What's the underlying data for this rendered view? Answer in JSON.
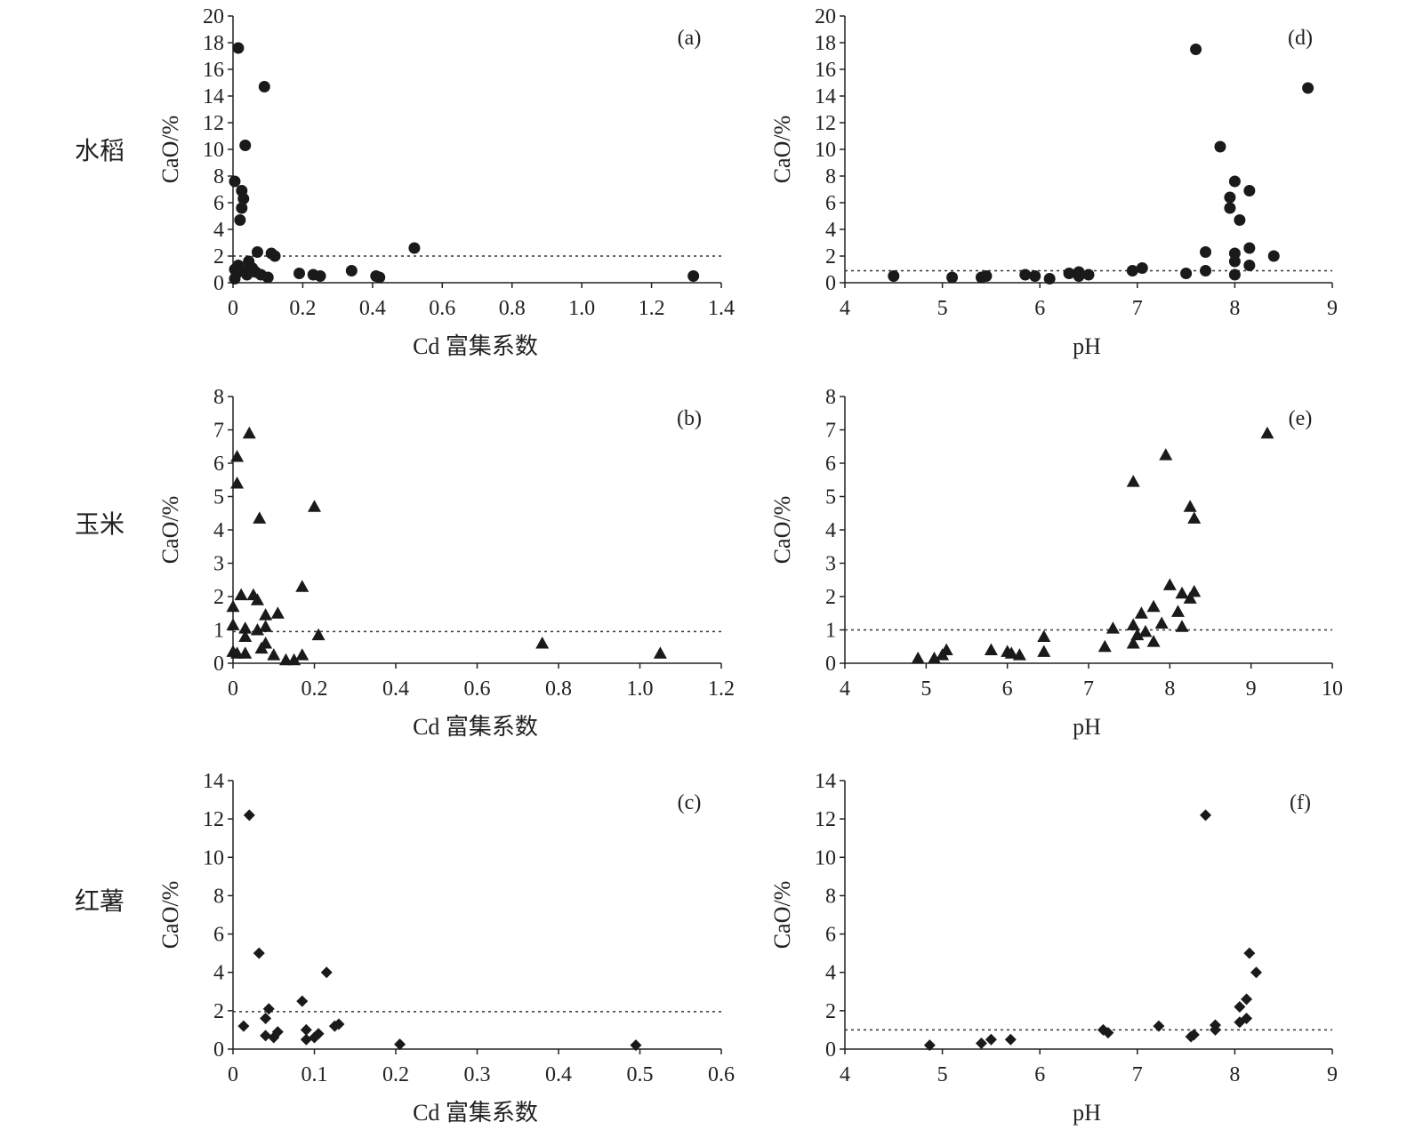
{
  "row_labels": [
    "水稻",
    "玉米",
    "红薯"
  ],
  "chart_data": [
    {
      "type": "scatter",
      "panel": "(a)",
      "marker": "circle",
      "xlabel": "Cd 富集系数",
      "ylabel": "CaO/%",
      "xlim": [
        0,
        1.4
      ],
      "ylim": [
        0,
        20
      ],
      "xticks": [
        "0",
        "0.2",
        "0.4",
        "0.6",
        "0.8",
        "1.0",
        "1.2",
        "1.4"
      ],
      "yticks": [
        "0",
        "2",
        "4",
        "6",
        "8",
        "10",
        "12",
        "14",
        "16",
        "18",
        "20"
      ],
      "threshold": 2,
      "points": [
        [
          0.015,
          17.6
        ],
        [
          0.09,
          14.7
        ],
        [
          0.035,
          10.3
        ],
        [
          0.005,
          7.6
        ],
        [
          0.025,
          6.9
        ],
        [
          0.03,
          6.3
        ],
        [
          0.025,
          5.6
        ],
        [
          0.02,
          4.7
        ],
        [
          0.52,
          2.6
        ],
        [
          0.07,
          2.3
        ],
        [
          0.11,
          2.2
        ],
        [
          0.12,
          2.0
        ],
        [
          0.045,
          1.6
        ],
        [
          0.015,
          1.3
        ],
        [
          0.055,
          1.1
        ],
        [
          0.005,
          1.0
        ],
        [
          0.03,
          0.9
        ],
        [
          0.065,
          0.8
        ],
        [
          0.34,
          0.9
        ],
        [
          0.01,
          0.7
        ],
        [
          0.04,
          0.6
        ],
        [
          0.08,
          0.6
        ],
        [
          0.19,
          0.7
        ],
        [
          0.23,
          0.6
        ],
        [
          0.25,
          0.5
        ],
        [
          0.1,
          0.4
        ],
        [
          0.41,
          0.5
        ],
        [
          0.42,
          0.4
        ],
        [
          0.005,
          0.3
        ],
        [
          1.32,
          0.5
        ]
      ]
    },
    {
      "type": "scatter",
      "panel": "(b)",
      "marker": "triangle",
      "xlabel": "Cd 富集系数",
      "ylabel": "CaO/%",
      "xlim": [
        0,
        1.2
      ],
      "ylim": [
        0,
        8
      ],
      "xticks": [
        "0",
        "0.2",
        "0.4",
        "0.6",
        "0.8",
        "1.0",
        "1.2"
      ],
      "yticks": [
        "0",
        "1",
        "2",
        "3",
        "4",
        "5",
        "6",
        "7",
        "8"
      ],
      "threshold": 0.95,
      "points": [
        [
          0.04,
          6.9
        ],
        [
          0.01,
          6.2
        ],
        [
          0.01,
          5.4
        ],
        [
          0.2,
          4.7
        ],
        [
          0.065,
          4.35
        ],
        [
          0.17,
          2.3
        ],
        [
          0.02,
          2.05
        ],
        [
          0.05,
          2.05
        ],
        [
          0.06,
          1.9
        ],
        [
          0.11,
          1.5
        ],
        [
          0.08,
          1.45
        ],
        [
          0.0,
          1.7
        ],
        [
          0.0,
          1.15
        ],
        [
          0.08,
          1.1
        ],
        [
          0.03,
          1.05
        ],
        [
          0.06,
          1.0
        ],
        [
          0.21,
          0.85
        ],
        [
          0.03,
          0.8
        ],
        [
          0.08,
          0.6
        ],
        [
          0.07,
          0.45
        ],
        [
          0.01,
          0.3
        ],
        [
          0.03,
          0.3
        ],
        [
          0.1,
          0.25
        ],
        [
          0.13,
          0.1
        ],
        [
          0.15,
          0.1
        ],
        [
          0.17,
          0.25
        ],
        [
          0.0,
          0.35
        ],
        [
          0.76,
          0.6
        ],
        [
          1.05,
          0.3
        ]
      ]
    },
    {
      "type": "scatter",
      "panel": "(c)",
      "marker": "diamond",
      "xlabel": "Cd 富集系数",
      "ylabel": "CaO/%",
      "xlim": [
        0,
        0.6
      ],
      "ylim": [
        0,
        14
      ],
      "xticks": [
        "0",
        "0.1",
        "0.2",
        "0.3",
        "0.4",
        "0.5",
        "0.6"
      ],
      "yticks": [
        "0",
        "2",
        "4",
        "6",
        "8",
        "10",
        "12",
        "14"
      ],
      "threshold": 1.95,
      "points": [
        [
          0.02,
          12.2
        ],
        [
          0.032,
          5.0
        ],
        [
          0.115,
          4.0
        ],
        [
          0.085,
          2.5
        ],
        [
          0.044,
          2.1
        ],
        [
          0.04,
          1.6
        ],
        [
          0.013,
          1.2
        ],
        [
          0.13,
          1.3
        ],
        [
          0.125,
          1.2
        ],
        [
          0.09,
          1.0
        ],
        [
          0.055,
          0.9
        ],
        [
          0.04,
          0.7
        ],
        [
          0.05,
          0.6
        ],
        [
          0.105,
          0.8
        ],
        [
          0.1,
          0.6
        ],
        [
          0.09,
          0.5
        ],
        [
          0.205,
          0.25
        ],
        [
          0.495,
          0.2
        ]
      ]
    },
    {
      "type": "scatter",
      "panel": "(d)",
      "marker": "circle",
      "xlabel": "pH",
      "ylabel": "CaO/%",
      "xlim": [
        4,
        9
      ],
      "ylim": [
        0,
        20
      ],
      "xticks": [
        "4",
        "5",
        "6",
        "7",
        "8",
        "9"
      ],
      "yticks": [
        "0",
        "2",
        "4",
        "6",
        "8",
        "10",
        "12",
        "14",
        "16",
        "18",
        "20"
      ],
      "threshold": 0.9,
      "points": [
        [
          7.6,
          17.5
        ],
        [
          8.75,
          14.6
        ],
        [
          7.85,
          10.2
        ],
        [
          8.0,
          7.6
        ],
        [
          8.15,
          6.9
        ],
        [
          7.95,
          6.4
        ],
        [
          7.95,
          5.6
        ],
        [
          8.05,
          4.7
        ],
        [
          8.15,
          2.6
        ],
        [
          7.7,
          2.3
        ],
        [
          8.0,
          2.2
        ],
        [
          8.4,
          2.0
        ],
        [
          8.0,
          1.6
        ],
        [
          8.15,
          1.3
        ],
        [
          7.05,
          1.1
        ],
        [
          6.95,
          0.9
        ],
        [
          7.7,
          0.9
        ],
        [
          8.0,
          0.6
        ],
        [
          7.5,
          0.7
        ],
        [
          6.4,
          0.8
        ],
        [
          6.3,
          0.7
        ],
        [
          6.5,
          0.6
        ],
        [
          6.4,
          0.5
        ],
        [
          5.85,
          0.6
        ],
        [
          5.95,
          0.5
        ],
        [
          5.45,
          0.5
        ],
        [
          5.4,
          0.4
        ],
        [
          4.5,
          0.5
        ],
        [
          5.1,
          0.4
        ],
        [
          6.1,
          0.3
        ]
      ]
    },
    {
      "type": "scatter",
      "panel": "(e)",
      "marker": "triangle",
      "xlabel": "pH",
      "ylabel": "CaO/%",
      "xlim": [
        4,
        10
      ],
      "ylim": [
        0,
        8
      ],
      "xticks": [
        "4",
        "5",
        "6",
        "7",
        "8",
        "9",
        "10"
      ],
      "yticks": [
        "0",
        "1",
        "2",
        "3",
        "4",
        "5",
        "6",
        "7",
        "8"
      ],
      "threshold": 1.0,
      "points": [
        [
          9.2,
          6.9
        ],
        [
          7.95,
          6.25
        ],
        [
          7.55,
          5.45
        ],
        [
          8.25,
          4.7
        ],
        [
          8.3,
          4.35
        ],
        [
          8.0,
          2.35
        ],
        [
          8.3,
          2.15
        ],
        [
          8.15,
          2.1
        ],
        [
          8.25,
          1.95
        ],
        [
          7.8,
          1.7
        ],
        [
          8.1,
          1.55
        ],
        [
          7.65,
          1.5
        ],
        [
          7.9,
          1.2
        ],
        [
          7.55,
          1.15
        ],
        [
          8.15,
          1.1
        ],
        [
          7.3,
          1.05
        ],
        [
          7.7,
          0.95
        ],
        [
          7.6,
          0.85
        ],
        [
          7.8,
          0.65
        ],
        [
          7.55,
          0.6
        ],
        [
          7.2,
          0.5
        ],
        [
          6.45,
          0.8
        ],
        [
          6.45,
          0.35
        ],
        [
          5.8,
          0.4
        ],
        [
          6.0,
          0.35
        ],
        [
          6.05,
          0.3
        ],
        [
          6.15,
          0.25
        ],
        [
          5.25,
          0.4
        ],
        [
          5.2,
          0.25
        ],
        [
          5.1,
          0.15
        ],
        [
          4.9,
          0.15
        ]
      ]
    },
    {
      "type": "scatter",
      "panel": "(f)",
      "marker": "diamond",
      "xlabel": "pH",
      "ylabel": "CaO/%",
      "xlim": [
        4,
        9
      ],
      "ylim": [
        0,
        14
      ],
      "xticks": [
        "4",
        "5",
        "6",
        "7",
        "8",
        "9"
      ],
      "yticks": [
        "0",
        "2",
        "4",
        "6",
        "8",
        "10",
        "12",
        "14"
      ],
      "threshold": 1.0,
      "points": [
        [
          7.7,
          12.2
        ],
        [
          8.15,
          5.0
        ],
        [
          8.22,
          4.0
        ],
        [
          8.12,
          2.6
        ],
        [
          8.05,
          2.2
        ],
        [
          8.12,
          1.6
        ],
        [
          8.05,
          1.4
        ],
        [
          7.8,
          1.25
        ],
        [
          7.8,
          1.0
        ],
        [
          7.22,
          1.2
        ],
        [
          6.65,
          1.0
        ],
        [
          6.7,
          0.85
        ],
        [
          7.58,
          0.75
        ],
        [
          7.55,
          0.65
        ],
        [
          5.7,
          0.5
        ],
        [
          5.5,
          0.5
        ],
        [
          5.4,
          0.3
        ],
        [
          4.87,
          0.2
        ]
      ]
    }
  ]
}
